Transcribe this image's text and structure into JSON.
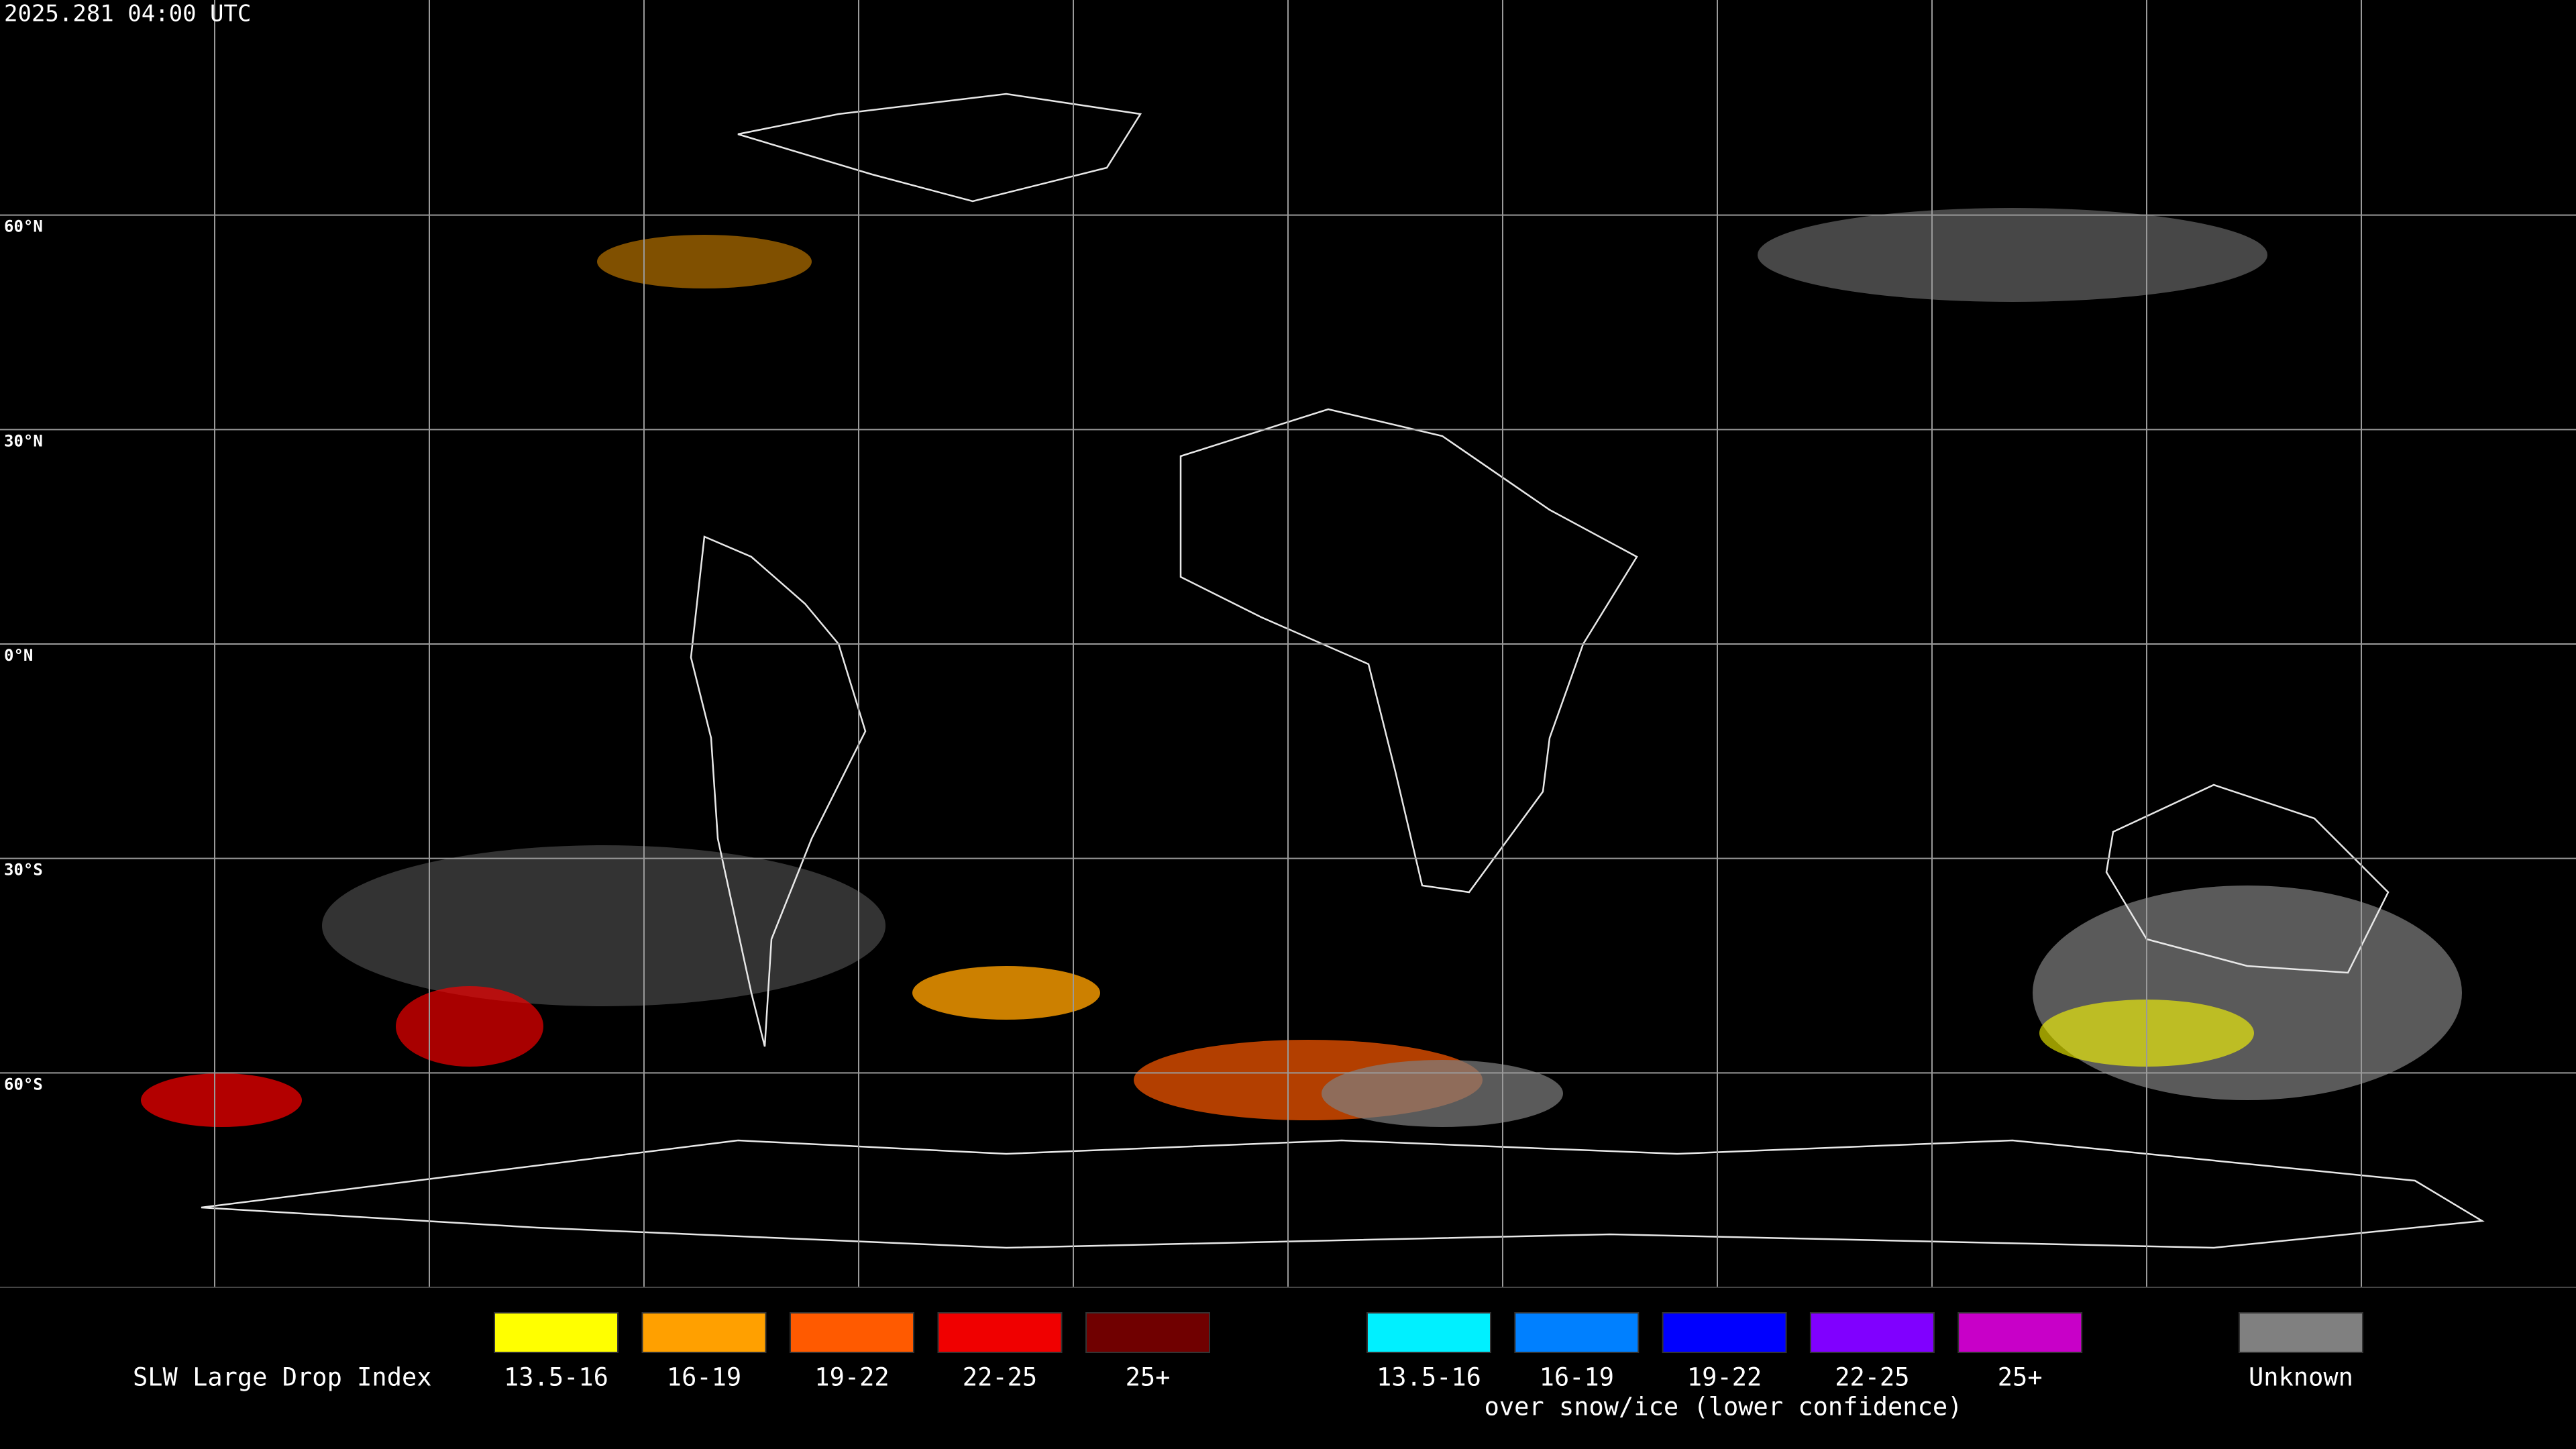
{
  "timestamp": "2025.281 04:00 UTC",
  "lat_labels": [
    "60°N",
    "30°N",
    "0°N",
    "30°S",
    "60°S"
  ],
  "legend": {
    "title": "SLW Large Drop Index",
    "main": [
      {
        "label": "13.5-16",
        "color": "#ffff00"
      },
      {
        "label": "16-19",
        "color": "#ffa000"
      },
      {
        "label": "19-22",
        "color": "#ff5a00"
      },
      {
        "label": "22-25",
        "color": "#f00000"
      },
      {
        "label": "25+",
        "color": "#700000"
      }
    ],
    "snow": [
      {
        "label": "13.5-16",
        "color": "#00f0ff"
      },
      {
        "label": "16-19",
        "color": "#0080ff"
      },
      {
        "label": "19-22",
        "color": "#0000ff"
      },
      {
        "label": "22-25",
        "color": "#8000ff"
      },
      {
        "label": "25+",
        "color": "#c800c8"
      }
    ],
    "snow_note": "over snow/ice (lower confidence)",
    "unknown": {
      "label": "Unknown",
      "color": "#808080"
    }
  }
}
